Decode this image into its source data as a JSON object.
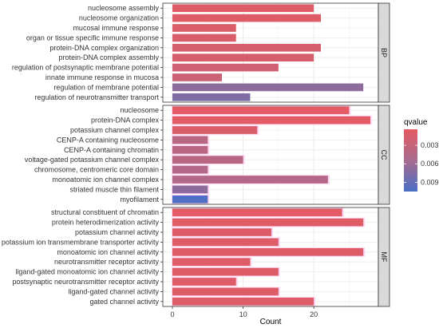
{
  "chart_data": {
    "type": "bar",
    "orientation": "horizontal",
    "xlabel": "Count",
    "ylabel": "",
    "xlim": [
      0,
      28
    ],
    "x_ticks": [
      0,
      10,
      20
    ],
    "grid": true,
    "legend_placement": "right",
    "legend": {
      "title": "qvalue",
      "ticks": [
        {
          "value": 0.003,
          "label": "0.003"
        },
        {
          "value": 0.006,
          "label": "0.006"
        },
        {
          "value": 0.009,
          "label": "0.009"
        }
      ],
      "range": [
        0.0004,
        0.0105
      ],
      "color_low": "#e45a63",
      "color_mid": "#a66b8e",
      "color_high": "#4a6fc6"
    },
    "panels": [
      {
        "name": "BP",
        "terms": [
          {
            "label": "nucleosome assembly",
            "count": 20,
            "qvalue": 0.0008
          },
          {
            "label": "nucleosome organization",
            "count": 21,
            "qvalue": 0.0008
          },
          {
            "label": "mucosal immune response",
            "count": 9,
            "qvalue": 0.0012
          },
          {
            "label": "organ or tissue specific immune response",
            "count": 9,
            "qvalue": 0.0012
          },
          {
            "label": "protein-DNA complex organization",
            "count": 21,
            "qvalue": 0.0015
          },
          {
            "label": "protein-DNA complex assembly",
            "count": 20,
            "qvalue": 0.0015
          },
          {
            "label": "regulation of postsynaptic membrane potential",
            "count": 15,
            "qvalue": 0.002
          },
          {
            "label": "innate immune response in mucosa",
            "count": 7,
            "qvalue": 0.0025
          },
          {
            "label": "regulation of membrane potential",
            "count": 27,
            "qvalue": 0.0068
          },
          {
            "label": "regulation of neurotransmitter transport",
            "count": 11,
            "qvalue": 0.0075
          }
        ]
      },
      {
        "name": "CC",
        "terms": [
          {
            "label": "nucleosome",
            "count": 25,
            "qvalue": 0.0006
          },
          {
            "label": "protein-DNA complex",
            "count": 28,
            "qvalue": 0.0006
          },
          {
            "label": "potassium channel complex",
            "count": 12,
            "qvalue": 0.0012
          },
          {
            "label": "CENP-A containing nucleosome",
            "count": 5,
            "qvalue": 0.004
          },
          {
            "label": "CENP-A containing chromatin",
            "count": 5,
            "qvalue": 0.004
          },
          {
            "label": "voltage-gated potassium channel complex",
            "count": 10,
            "qvalue": 0.004
          },
          {
            "label": "chromosome, centromeric core domain",
            "count": 5,
            "qvalue": 0.0045
          },
          {
            "label": "monoatomic ion channel complex",
            "count": 22,
            "qvalue": 0.0045
          },
          {
            "label": "striated muscle thin filament",
            "count": 5,
            "qvalue": 0.0068
          },
          {
            "label": "myofilament",
            "count": 5,
            "qvalue": 0.0103
          }
        ]
      },
      {
        "name": "MF",
        "terms": [
          {
            "label": "structural constituent of chromatin",
            "count": 24,
            "qvalue": 0.0006
          },
          {
            "label": "protein heterodimerization activity",
            "count": 27,
            "qvalue": 0.0008
          },
          {
            "label": "potassium channel activity",
            "count": 14,
            "qvalue": 0.0009
          },
          {
            "label": "potassium ion transmembrane transporter activity",
            "count": 15,
            "qvalue": 0.0009
          },
          {
            "label": "monoatomic ion channel activity",
            "count": 27,
            "qvalue": 0.0009
          },
          {
            "label": "neurotransmitter receptor activity",
            "count": 11,
            "qvalue": 0.001
          },
          {
            "label": "ligand-gated monoatomic ion channel activity",
            "count": 15,
            "qvalue": 0.001
          },
          {
            "label": "postsynaptic neurotransmitter receptor activity",
            "count": 9,
            "qvalue": 0.001
          },
          {
            "label": "ligand-gated channel activity",
            "count": 15,
            "qvalue": 0.001
          },
          {
            "label": "gated channel activity",
            "count": 20,
            "qvalue": 0.001
          }
        ]
      }
    ]
  },
  "colors": {
    "panel_bg": "#ffffff",
    "panel_border": "#333333",
    "grid_major": "#ebebeb",
    "grid_minor": "#f5f5f5",
    "strip_bg": "#d9d9d9",
    "highlight": "#ffd6f2"
  }
}
